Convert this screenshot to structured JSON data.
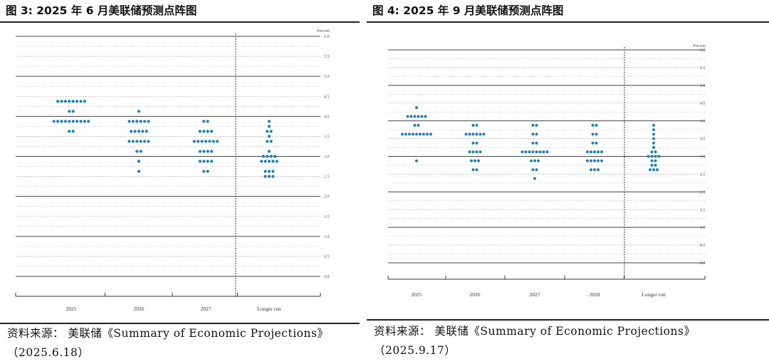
{
  "panels": [
    {
      "title": "图 3:  2025 年 6 月美联储预测点阵图",
      "source": "资料来源： 美联储《Summary of Economic Projections》",
      "source_date": "（2025.6.18）"
    },
    {
      "title": "图 4:  2025 年 9 月美联储预测点阵图",
      "source": "资料来源： 美联储《Summary of Economic Projections》",
      "source_date": "（2025.9.17）"
    }
  ],
  "chart_data": [
    {
      "type": "scatter",
      "subtype": "dot-plot",
      "unit_label": "Percent",
      "categories": [
        "2025",
        "2026",
        "2027",
        "Longer run"
      ],
      "ylim": [
        0,
        6
      ],
      "yticks": [
        "0.0",
        "0.5",
        "1.0",
        "1.5",
        "2.0",
        "2.5",
        "3.0",
        "3.5",
        "4.0",
        "4.5",
        "5.0",
        "5.5",
        "6.0"
      ],
      "dot_color": "#1f7fb4",
      "grid": true,
      "dots": [
        {
          "category": "2025",
          "counts": {
            "4.375": 8,
            "4.125": 2,
            "3.875": 10,
            "3.625": 2
          }
        },
        {
          "category": "2026",
          "counts": {
            "4.125": 1,
            "3.875": 6,
            "3.625": 5,
            "3.375": 6,
            "3.125": 2,
            "2.875": 1,
            "2.625": 1
          }
        },
        {
          "category": "2027",
          "counts": {
            "3.875": 2,
            "3.625": 4,
            "3.375": 7,
            "3.125": 4,
            "2.875": 4,
            "2.625": 2
          }
        },
        {
          "category": "Longer run",
          "counts": {
            "3.875": 1,
            "3.75": 1,
            "3.625": 2,
            "3.5": 1,
            "3.375": 2,
            "3.125": 1,
            "3.0": 4,
            "2.875": 5,
            "2.625": 3,
            "2.5": 3
          }
        }
      ]
    },
    {
      "type": "scatter",
      "subtype": "dot-plot",
      "unit_label": "Percent",
      "categories": [
        "2025",
        "2026",
        "2027",
        "2028",
        "Longer run"
      ],
      "ylim": [
        0,
        6
      ],
      "yticks": [
        "0.0",
        "0.5",
        "1.0",
        "1.5",
        "2.0",
        "2.5",
        "3.0",
        "3.5",
        "4.0",
        "4.5",
        "5.0",
        "5.5",
        "6.0"
      ],
      "dot_color": "#1f7fb4",
      "grid": true,
      "dots": [
        {
          "category": "2025",
          "counts": {
            "4.375": 1,
            "4.125": 6,
            "3.875": 2,
            "3.625": 9,
            "2.875": 1
          }
        },
        {
          "category": "2026",
          "counts": {
            "3.875": 2,
            "3.625": 6,
            "3.375": 2,
            "3.125": 4,
            "2.875": 3,
            "2.625": 2
          }
        },
        {
          "category": "2027",
          "counts": {
            "3.875": 2,
            "3.625": 2,
            "3.375": 2,
            "3.125": 8,
            "2.875": 3,
            "2.625": 2,
            "2.375": 1
          }
        },
        {
          "category": "2028",
          "counts": {
            "3.875": 2,
            "3.625": 2,
            "3.375": 2,
            "3.125": 5,
            "2.875": 5,
            "2.625": 3
          }
        },
        {
          "category": "Longer run",
          "counts": {
            "3.875": 1,
            "3.75": 1,
            "3.625": 1,
            "3.5": 1,
            "3.375": 1,
            "3.25": 1,
            "3.125": 2,
            "3.0": 4,
            "2.875": 2,
            "2.75": 2,
            "2.625": 3
          }
        }
      ]
    }
  ]
}
